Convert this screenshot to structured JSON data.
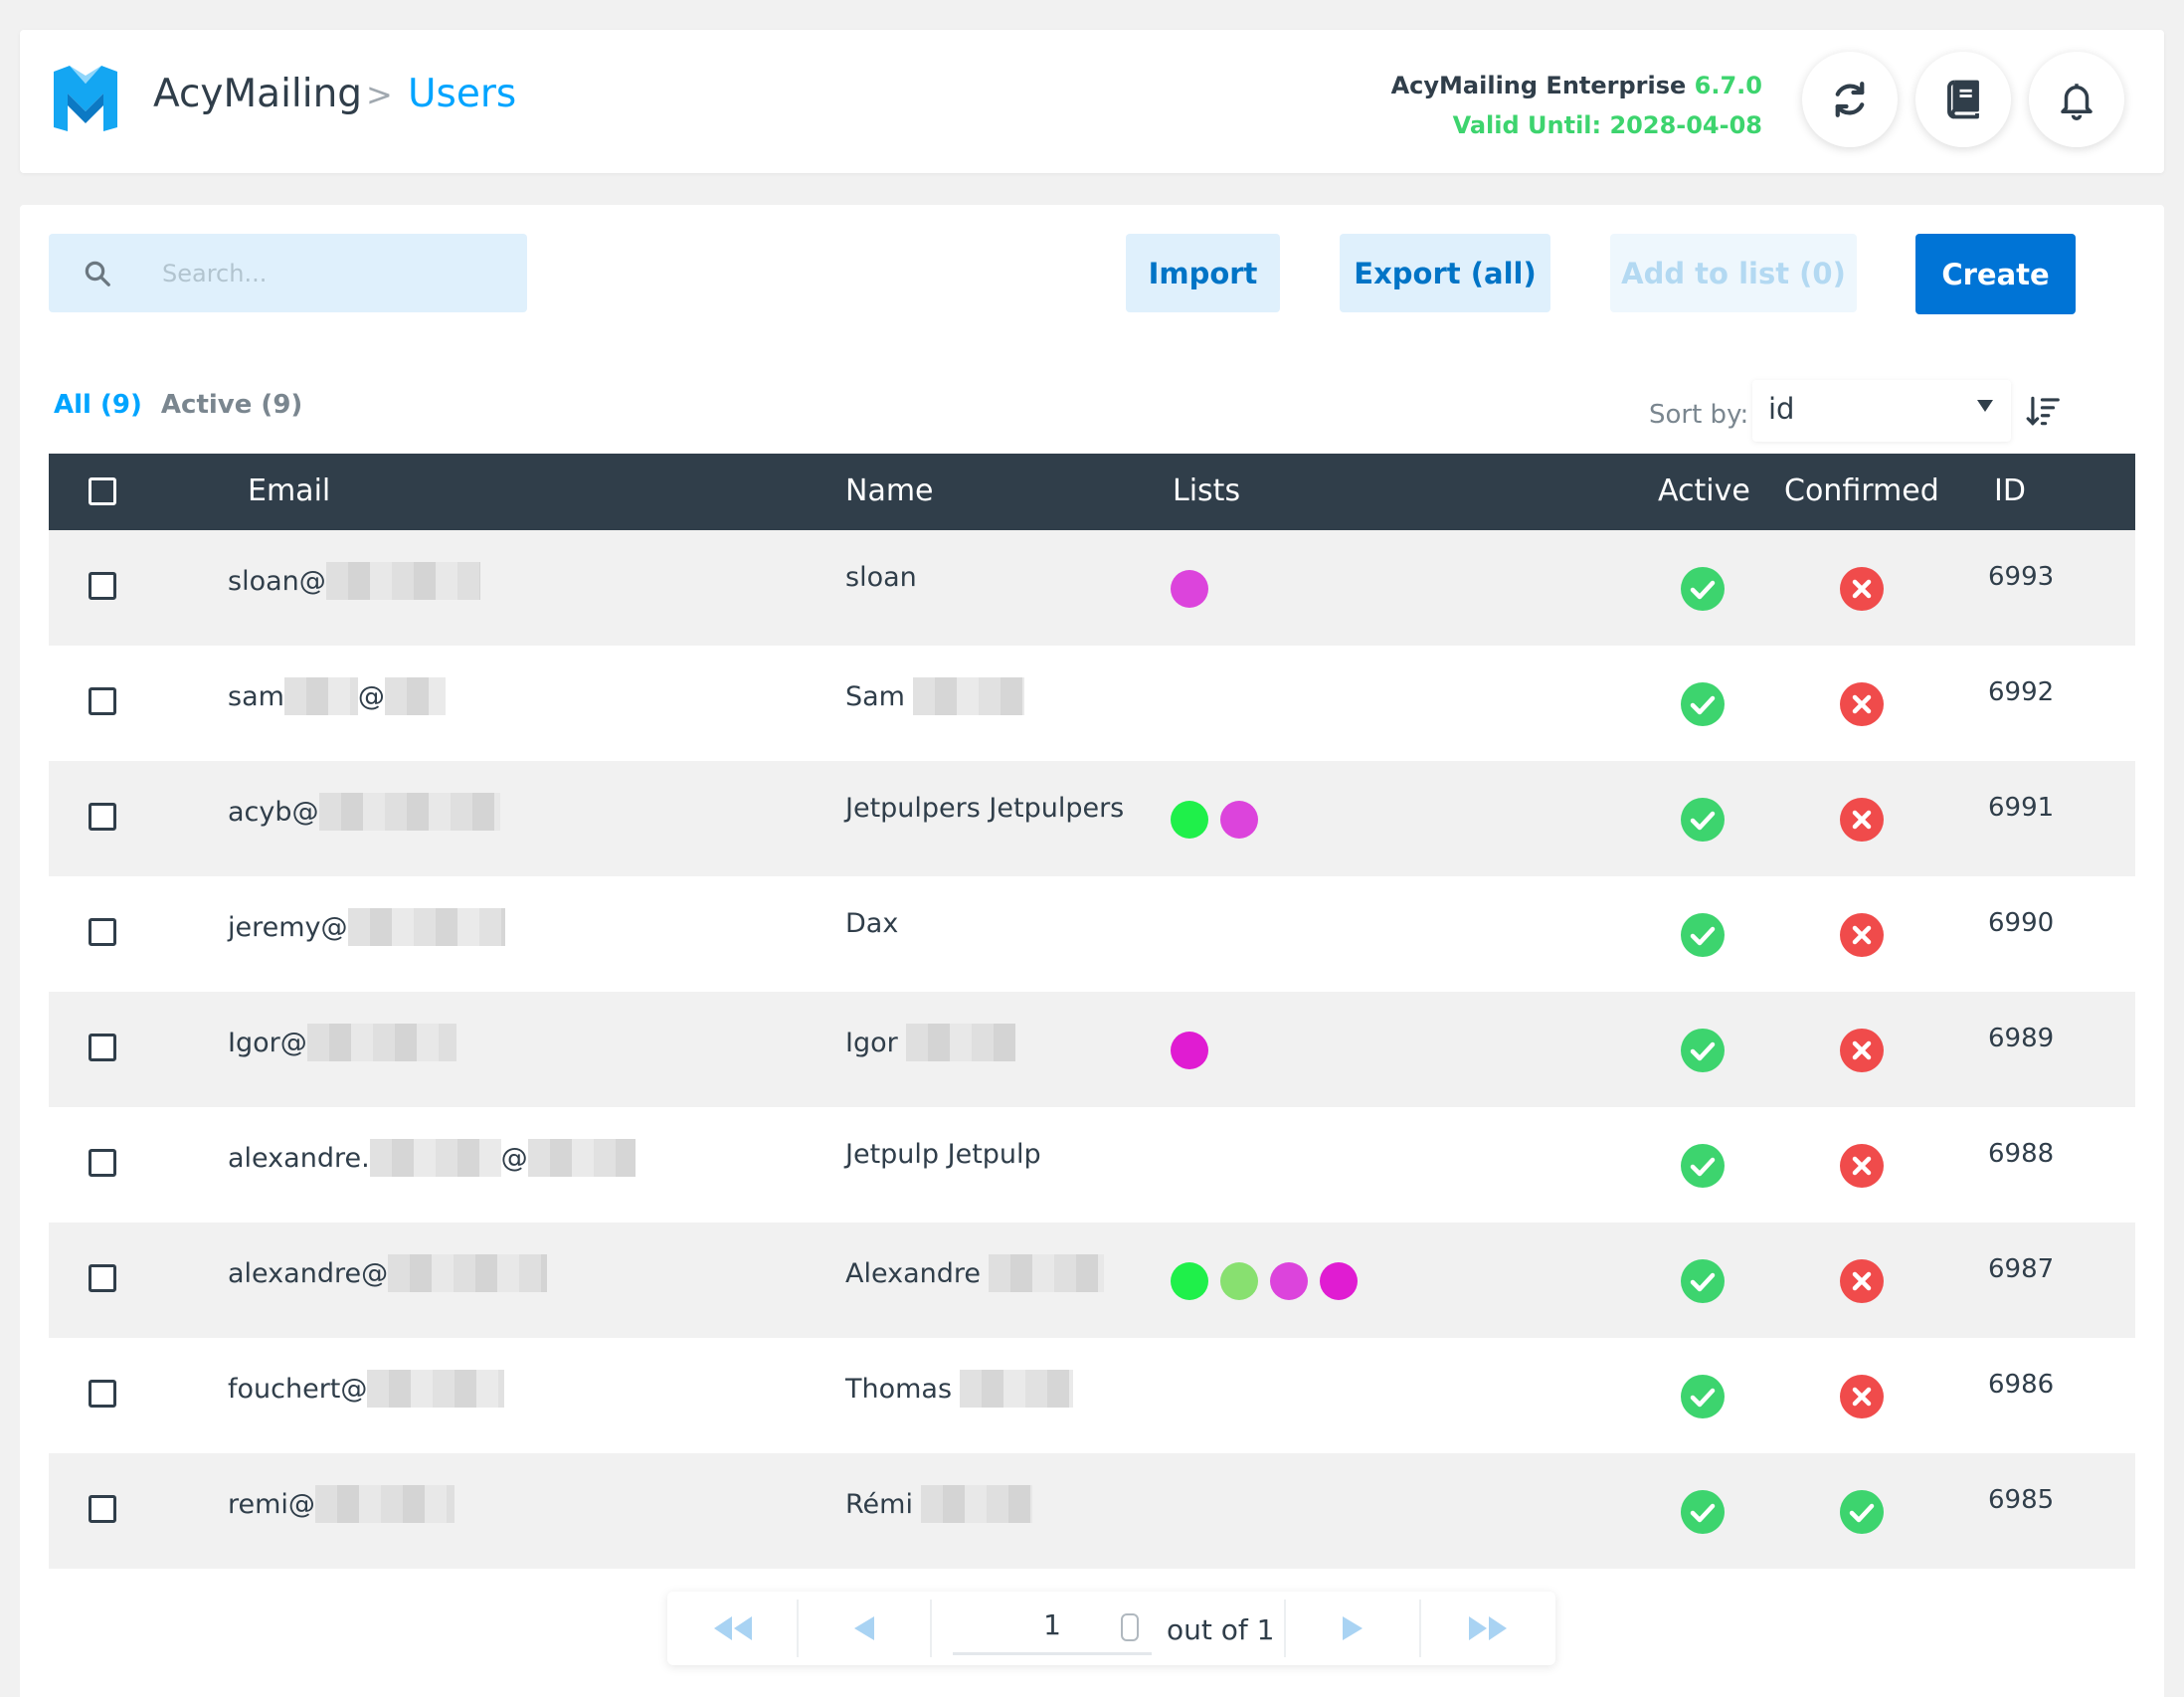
{
  "header": {
    "brand": "AcyMailing",
    "breadcrumb_sep": ">",
    "breadcrumb_current": "Users",
    "license_edition": "AcyMailing Enterprise",
    "license_version": "6.7.0",
    "license_valid": "Valid Until: 2028-04-08",
    "icons": [
      "refresh-icon",
      "book-icon",
      "bell-icon"
    ]
  },
  "toolbar": {
    "search_placeholder": "Search...",
    "import_label": "Import",
    "export_label": "Export (all)",
    "add_to_list_label": "Add to list (0)",
    "create_label": "Create"
  },
  "filters": {
    "all": "All (9)",
    "active": "Active (9)"
  },
  "sort": {
    "label": "Sort by:",
    "value": "id"
  },
  "table": {
    "columns": [
      "Email",
      "Name",
      "Lists",
      "Active",
      "Confirmed",
      "ID"
    ],
    "rows": [
      {
        "email": "sloan@",
        "name": "sloan",
        "lists": [
          "#dc44dc"
        ],
        "active": true,
        "confirmed": false,
        "id": "6993"
      },
      {
        "email": "sam",
        "email_mid": "@",
        "name": "Sam",
        "lists": [],
        "active": true,
        "confirmed": false,
        "id": "6992"
      },
      {
        "email": "acyb@",
        "name": "Jetpulpers Jetpulpers",
        "lists": [
          "#1ff04a",
          "#dc44dc"
        ],
        "active": true,
        "confirmed": false,
        "id": "6991"
      },
      {
        "email": "jeremy@",
        "name": "Dax",
        "lists": [],
        "active": true,
        "confirmed": false,
        "id": "6990"
      },
      {
        "email": "Igor@",
        "name": "Igor",
        "lists": [
          "#e01cd2"
        ],
        "active": true,
        "confirmed": false,
        "id": "6989"
      },
      {
        "email": "alexandre.",
        "email_mid": "@",
        "name": "Jetpulp Jetpulp",
        "lists": [],
        "active": true,
        "confirmed": false,
        "id": "6988"
      },
      {
        "email": "alexandre@",
        "name": "Alexandre",
        "lists": [
          "#1ff04a",
          "#88e070",
          "#dc44dc",
          "#e01cd2"
        ],
        "active": true,
        "confirmed": false,
        "id": "6987"
      },
      {
        "email": "fouchert@",
        "name": "Thomas",
        "lists": [],
        "active": true,
        "confirmed": false,
        "id": "6986"
      },
      {
        "email": "remi@",
        "name": "Rémi",
        "lists": [],
        "active": true,
        "confirmed": true,
        "id": "6985"
      }
    ]
  },
  "pagination": {
    "page": "1",
    "out_of": "out of 1"
  },
  "colors": {
    "accent": "#00a4ff",
    "primary": "#0074d6",
    "success": "#3dd46e",
    "danger": "#f04b4b",
    "header_bg": "#303e4a"
  }
}
